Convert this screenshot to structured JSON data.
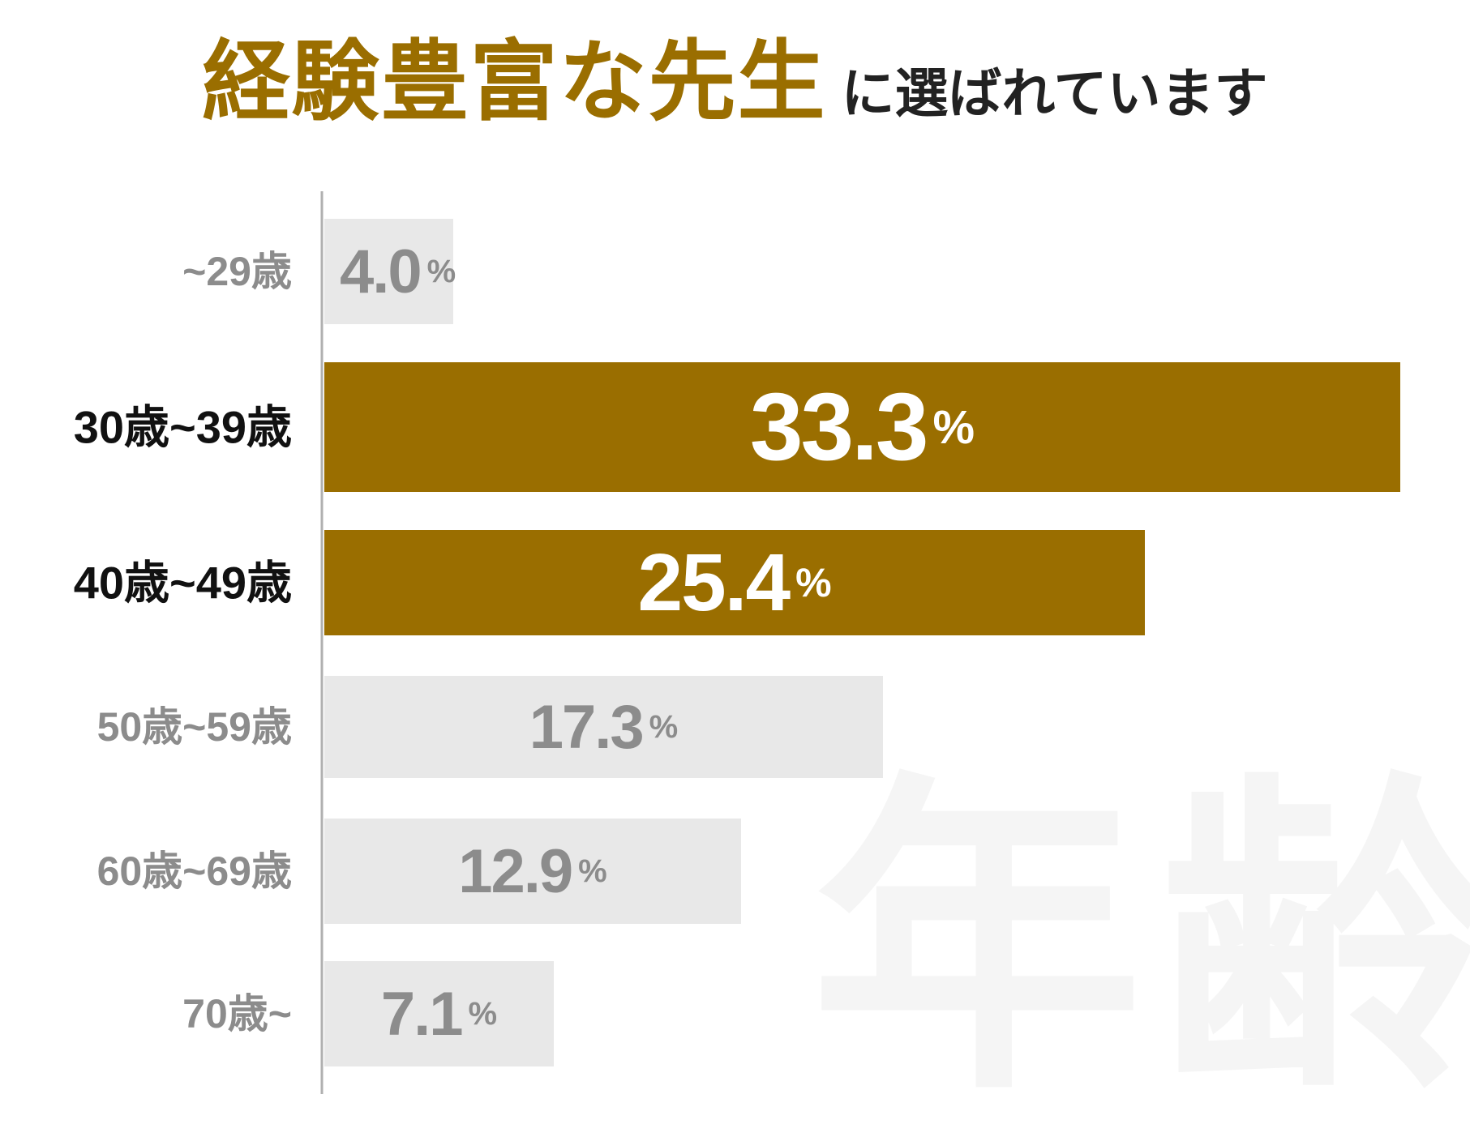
{
  "title": {
    "main": "経験豊富な先生",
    "sub": "に選ばれています"
  },
  "watermark": "年齢",
  "colors": {
    "accent": "#9a6e00",
    "muted_bar": "#e8e8e8",
    "muted_text": "#8c8c8c",
    "strong_text": "#111111",
    "highlight_value": "#ffffff",
    "subtitle": "#222222",
    "axis": "#b0b0b0"
  },
  "chart_data": {
    "type": "bar",
    "orientation": "horizontal",
    "categories": [
      "~29歳",
      "30歳~39歳",
      "40歳~49歳",
      "50歳~59歳",
      "60歳~69歳",
      "70歳~"
    ],
    "values": [
      4.0,
      33.3,
      25.4,
      17.3,
      12.9,
      7.1
    ],
    "value_labels": [
      "4.0",
      "33.3",
      "25.4",
      "17.3",
      "12.9",
      "7.1"
    ],
    "unit": "%",
    "highlighted": [
      false,
      true,
      true,
      false,
      false,
      false
    ],
    "title": "経験豊富な先生に選ばれています",
    "xlabel": "",
    "ylabel": "",
    "xlim": [
      0,
      33.3
    ],
    "grid": false,
    "legend": "none"
  }
}
